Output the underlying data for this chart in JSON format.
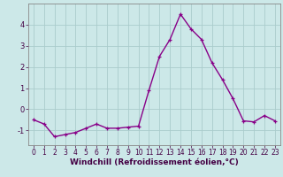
{
  "x": [
    0,
    1,
    2,
    3,
    4,
    5,
    6,
    7,
    8,
    9,
    10,
    11,
    12,
    13,
    14,
    15,
    16,
    17,
    18,
    19,
    20,
    21,
    22,
    23
  ],
  "y": [
    -0.5,
    -0.7,
    -1.3,
    -1.2,
    -1.1,
    -0.9,
    -0.7,
    -0.9,
    -0.9,
    -0.85,
    -0.8,
    0.9,
    2.5,
    3.3,
    4.5,
    3.8,
    3.3,
    2.2,
    1.4,
    0.5,
    -0.55,
    -0.6,
    -0.3,
    -0.55
  ],
  "line_color": "#880088",
  "marker": "+",
  "marker_size": 3,
  "linewidth": 1.0,
  "bg_color": "#cce8e8",
  "grid_color": "#aacccc",
  "xlabel": "Windchill (Refroidissement éolien,°C)",
  "xlabel_fontsize": 6.5,
  "xlim": [
    -0.5,
    23.5
  ],
  "ylim": [
    -1.7,
    5.0
  ],
  "yticks": [
    -1,
    0,
    1,
    2,
    3,
    4
  ],
  "xticks": [
    0,
    1,
    2,
    3,
    4,
    5,
    6,
    7,
    8,
    9,
    10,
    11,
    12,
    13,
    14,
    15,
    16,
    17,
    18,
    19,
    20,
    21,
    22,
    23
  ],
  "tick_fontsize": 5.5,
  "spine_color": "#888888"
}
